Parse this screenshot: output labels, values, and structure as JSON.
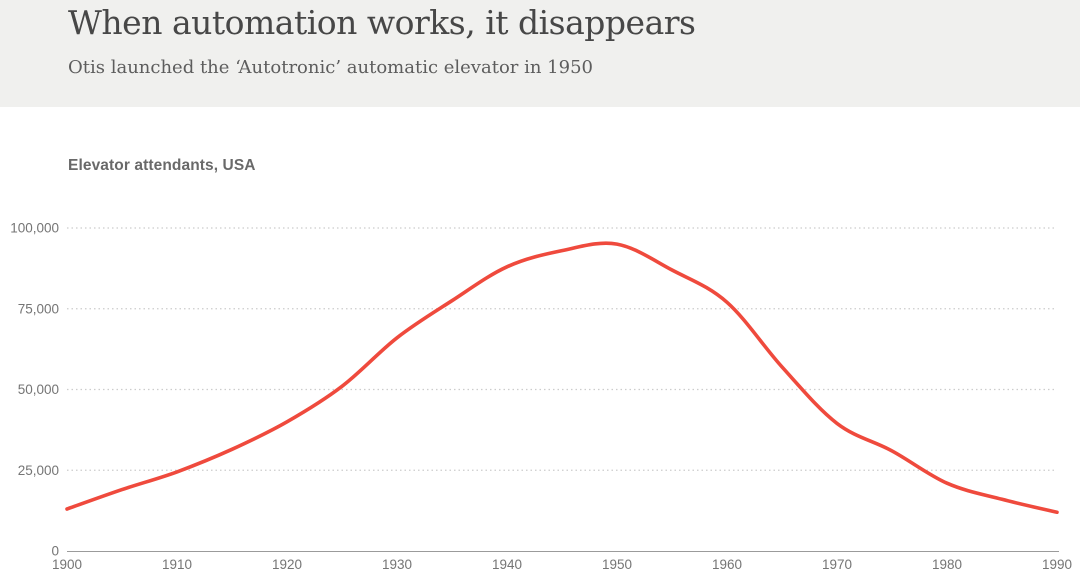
{
  "header": {
    "title": "When automation works, it disappears",
    "subtitle": "Otis launched the ‘Autotronic’ automatic elevator in 1950"
  },
  "chart_data": {
    "type": "line",
    "title": "Elevator attendants, USA",
    "series_name": "Elevator attendants",
    "x": [
      1900,
      1905,
      1910,
      1915,
      1920,
      1925,
      1930,
      1935,
      1940,
      1945,
      1950,
      1955,
      1960,
      1965,
      1970,
      1975,
      1980,
      1985,
      1990
    ],
    "values": [
      13000,
      19000,
      24500,
      31500,
      40000,
      51000,
      66000,
      77500,
      88000,
      93000,
      95000,
      87000,
      77000,
      57000,
      39500,
      31000,
      21000,
      16000,
      12000
    ],
    "xlabel": "",
    "ylabel": "",
    "xlim": [
      1900,
      1990
    ],
    "ylim": [
      0,
      100000
    ],
    "x_ticks": [
      "1900",
      "1910",
      "1920",
      "1930",
      "1940",
      "1950",
      "1960",
      "1970",
      "1980",
      "1990"
    ],
    "x_tick_years": [
      1900,
      1910,
      1920,
      1930,
      1940,
      1950,
      1960,
      1970,
      1980,
      1990
    ],
    "y_ticks": [
      0,
      25000,
      50000,
      75000,
      100000
    ],
    "y_tick_labels": [
      "0",
      "25,000",
      "50,000",
      "75,000",
      "100,000"
    ],
    "grid": "horizontal-dotted",
    "legend": "none",
    "annotations": []
  },
  "colors": {
    "header_bg": "#f0f0ee",
    "page_bg": "#ffffff",
    "title_text": "#474747",
    "subtitle_text": "#5d5d5d",
    "chart_title_text": "#696969",
    "tick_label": "#757575",
    "gridline": "#cccccc",
    "axis_line": "#9b9b9b",
    "line": "#ef4a3d"
  }
}
